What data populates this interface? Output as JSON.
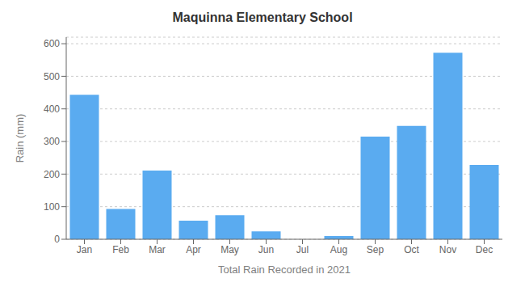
{
  "chart_data": {
    "type": "bar",
    "title": "Maquinna Elementary School",
    "xlabel": "Total Rain Recorded in 2021",
    "ylabel": "Rain (mm)",
    "categories": [
      "Jan",
      "Feb",
      "Mar",
      "Apr",
      "May",
      "Jun",
      "Jul",
      "Aug",
      "Sep",
      "Oct",
      "Nov",
      "Dec"
    ],
    "values": [
      443,
      93,
      211,
      57,
      74,
      24,
      0,
      10,
      315,
      348,
      572,
      228
    ],
    "color": "#5aabf0",
    "ylim": [
      0,
      620
    ],
    "yticks": [
      0,
      100,
      200,
      300,
      400,
      500,
      600
    ],
    "grid": true
  }
}
